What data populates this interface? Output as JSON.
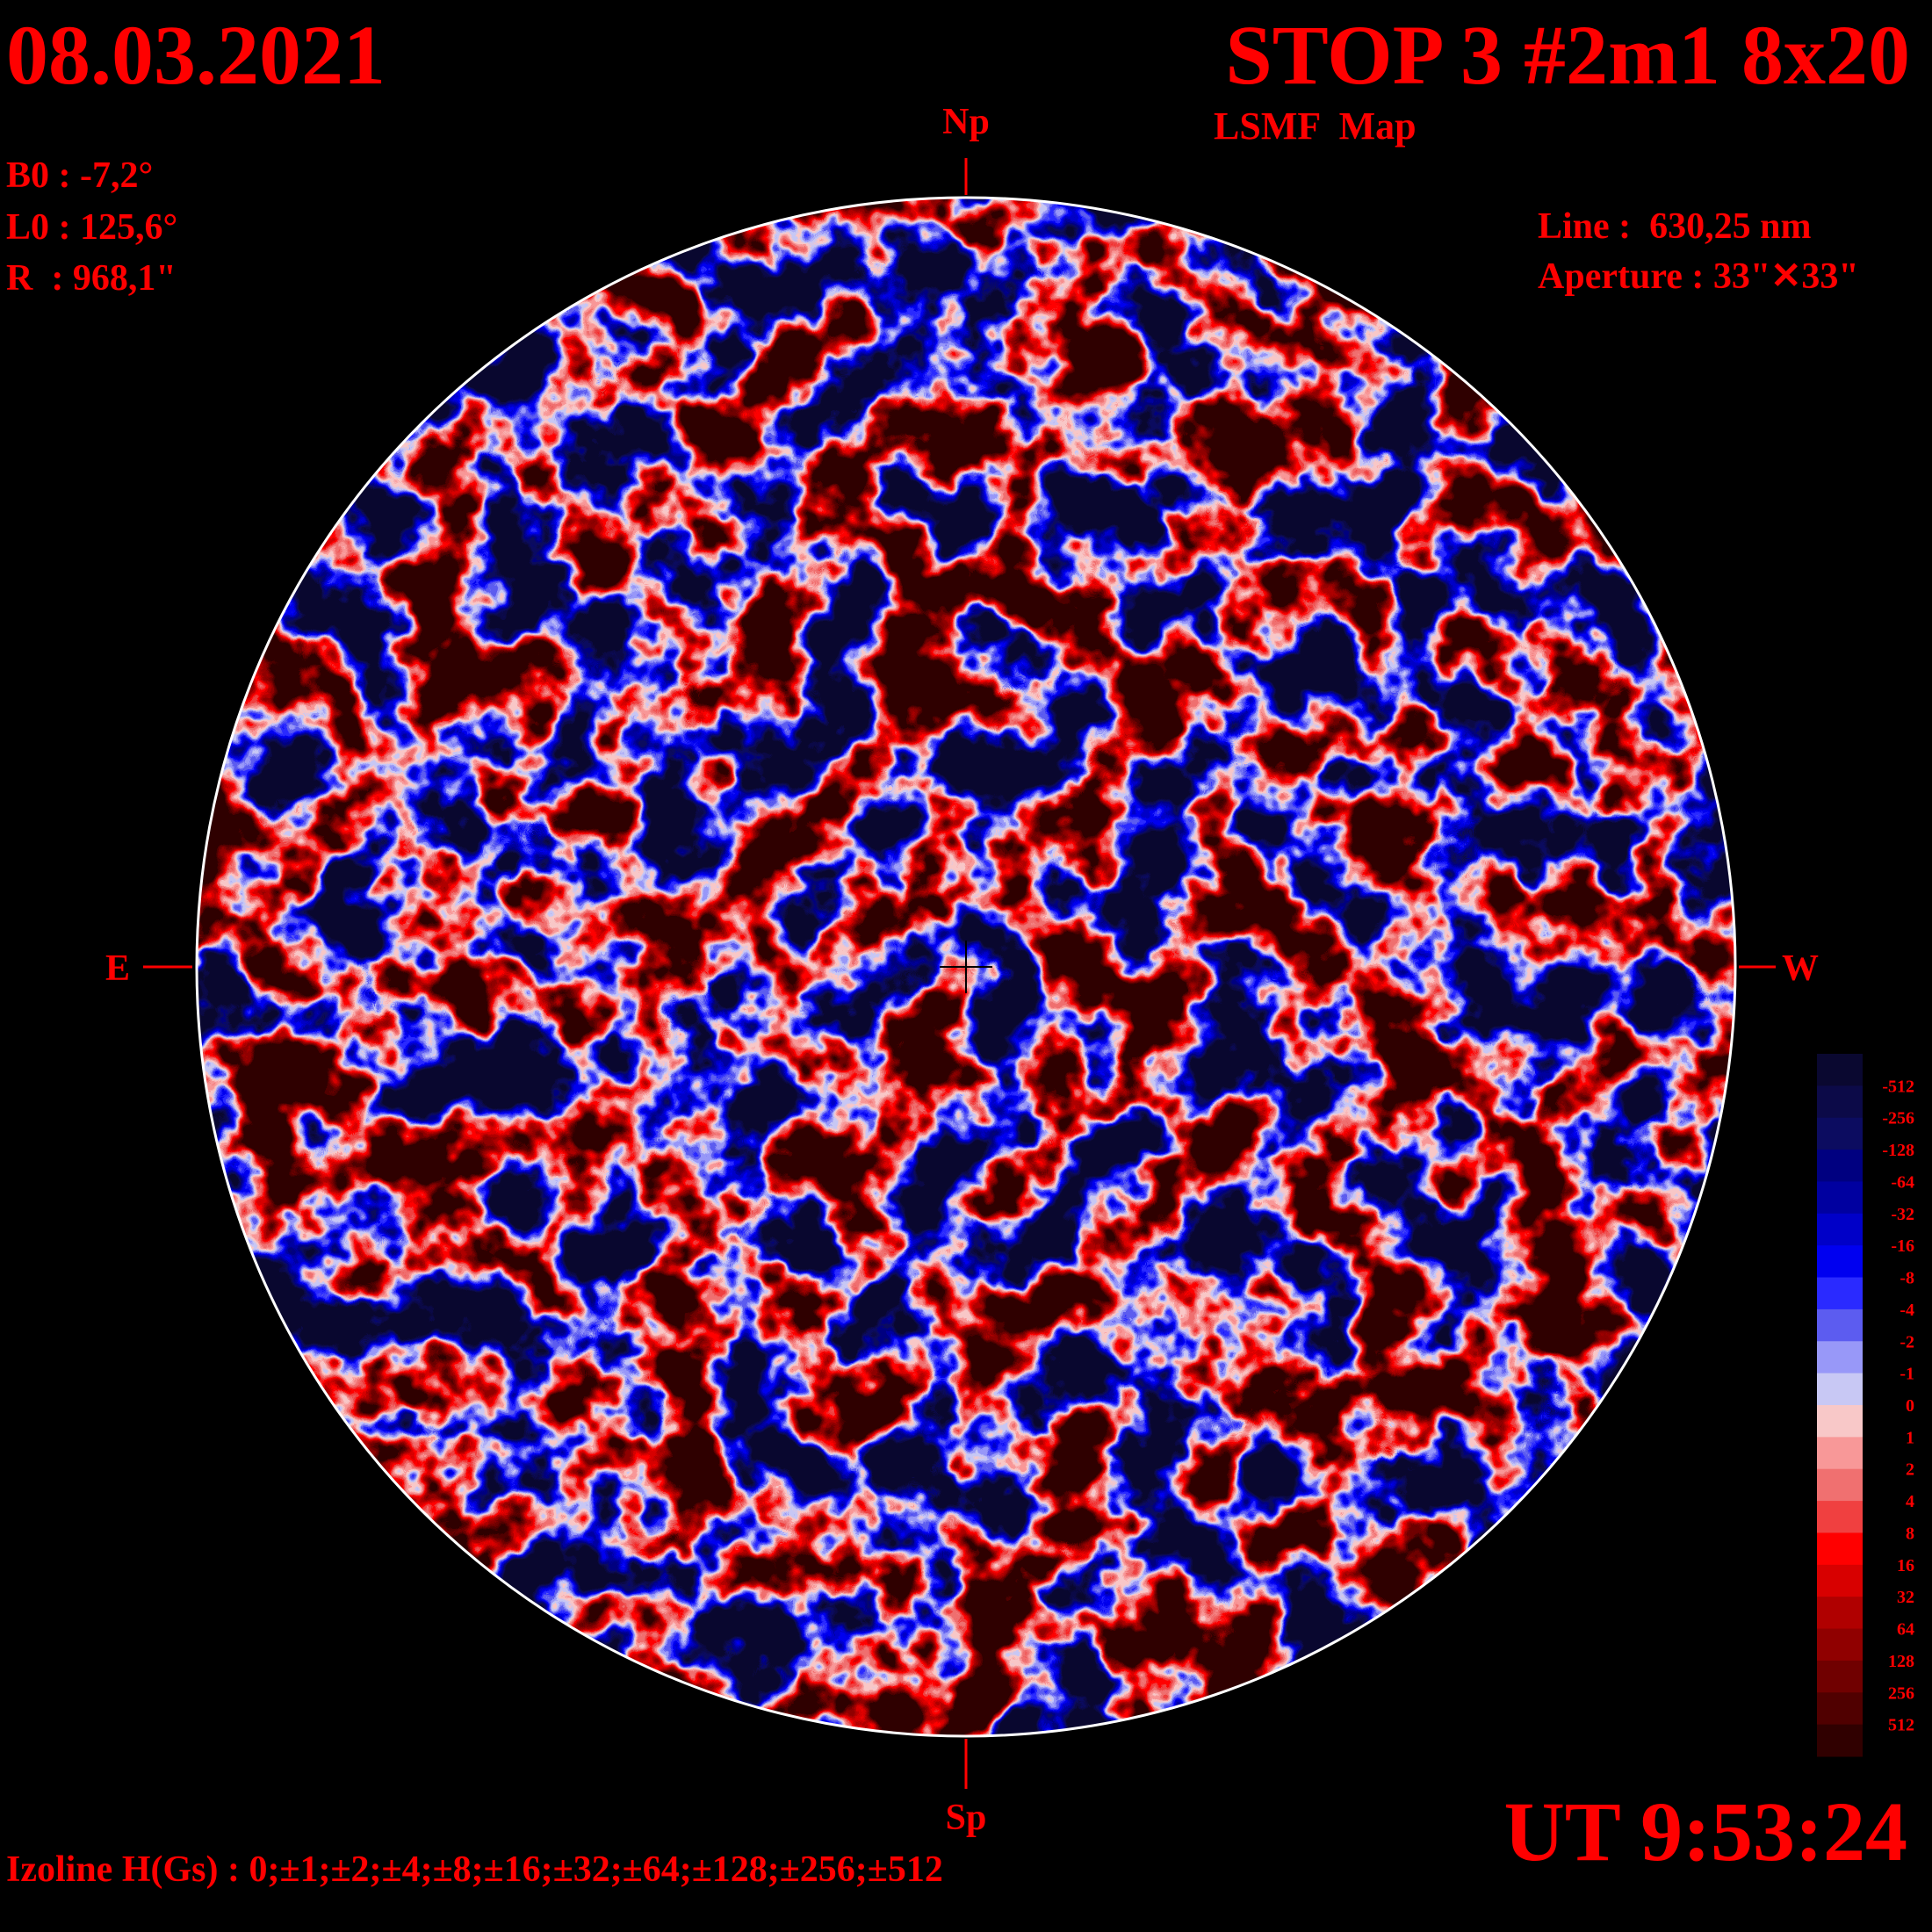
{
  "header": {
    "date": "08.03.2021",
    "title": "STOP 3 #2m1 8x20",
    "subtitle": "LSMF  Map",
    "line": "Line :  630,25 nm",
    "aperture": "Aperture : 33\"✕33\""
  },
  "parameters": [
    "B0 : -7,2°",
    "L0 : 125,6°",
    "R  : 968,1\""
  ],
  "directions": {
    "north": "Np",
    "south": "Sp",
    "east": "E",
    "west": "W"
  },
  "time": "UT 9:53:24",
  "isolines": "Izoline H(Gs) : 0;±1;±2;±4;±8;±16;±32;±64;±128;±256;±512",
  "colorbar": {
    "levels": [
      -512,
      -256,
      -128,
      -64,
      -32,
      -16,
      -8,
      -4,
      -2,
      -1,
      0,
      1,
      2,
      4,
      8,
      16,
      32,
      64,
      128,
      256,
      512
    ],
    "colors": [
      "#0a0830",
      "#0c0a48",
      "#0c0c60",
      "#000080",
      "#0000a0",
      "#0000c8",
      "#0000f0",
      "#2a2aff",
      "#5c5cf0",
      "#9898f8",
      "#c8c8f4",
      "#f8c8c8",
      "#f89898",
      "#f07070",
      "#f04040",
      "#ff0000",
      "#d80000",
      "#b00000",
      "#900000",
      "#700000",
      "#500000",
      "#300000"
    ]
  }
}
